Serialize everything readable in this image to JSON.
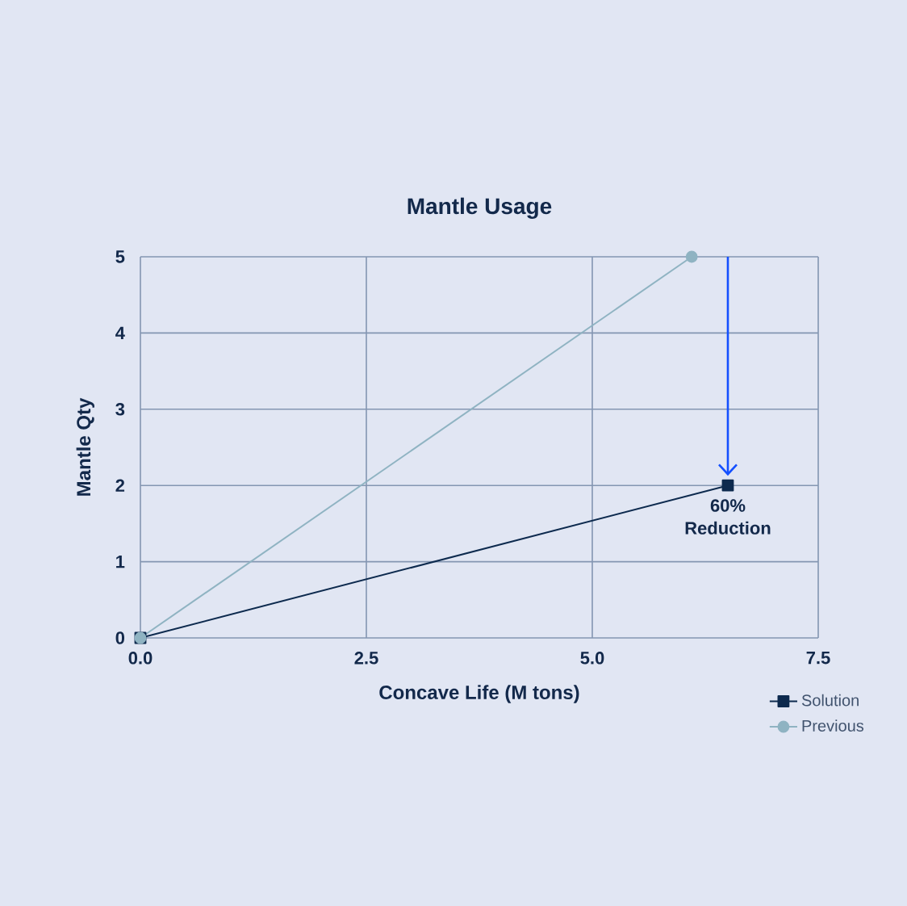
{
  "chart_data": {
    "type": "line",
    "title": "Mantle Usage",
    "xlabel": "Concave Life (M tons)",
    "ylabel": "Mantle Qty",
    "series": [
      {
        "name": "Solution",
        "color": "#0d2a4e",
        "marker": "square",
        "x": [
          0,
          6.5
        ],
        "values": [
          0,
          2
        ]
      },
      {
        "name": "Previous",
        "color": "#8fb3c2",
        "marker": "circle",
        "x": [
          0,
          6.1
        ],
        "values": [
          0,
          5
        ]
      }
    ],
    "annotations": [
      {
        "text": "60% Reduction",
        "x": 6.5,
        "y": 2
      }
    ],
    "xlim": [
      0,
      7.5
    ],
    "ylim": [
      0,
      5
    ],
    "xticks": [
      {
        "value": 0,
        "label": "0.0"
      },
      2.5,
      {
        "value": 5,
        "label": "5.0"
      },
      7.5
    ],
    "yticks": [
      0,
      1,
      2,
      3,
      4,
      5
    ],
    "grid": true,
    "legend": "bottom right"
  }
}
